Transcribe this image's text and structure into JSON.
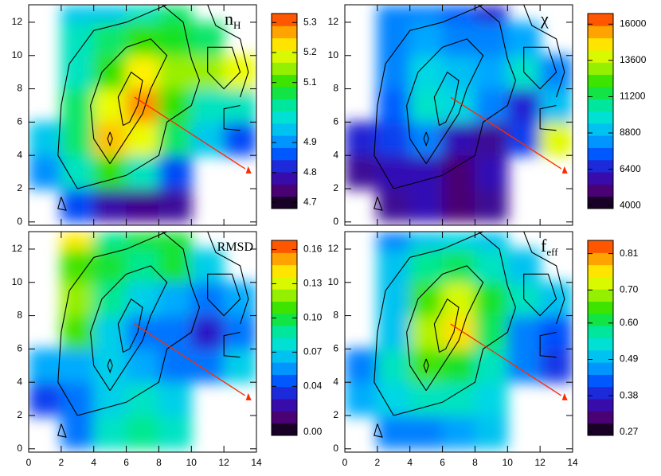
{
  "colormap": [
    "#000000",
    "#4a0070",
    "#3010c0",
    "#0050ff",
    "#00a8ff",
    "#00e0e0",
    "#00e890",
    "#20e000",
    "#a0f000",
    "#ffff00",
    "#ffa000",
    "#ff3000"
  ],
  "chart_data": [
    {
      "type": "heatmap",
      "title": "n",
      "title_sub": "H",
      "show_xtick_labels": false,
      "xlim": [
        0,
        14
      ],
      "ylim": [
        -0.2,
        13.05
      ],
      "xticks": [
        0,
        2,
        4,
        6,
        8,
        10,
        12,
        14
      ],
      "yticks": [
        0,
        2,
        4,
        6,
        8,
        10,
        12
      ],
      "xbins": [
        0,
        2,
        4,
        6,
        8,
        10,
        12,
        14
      ],
      "ybins": [
        0,
        2,
        4,
        6,
        8,
        10,
        12,
        13
      ],
      "values": [
        [
          null,
          4.85,
          4.78,
          4.76,
          4.77,
          null,
          null
        ],
        [
          4.9,
          5.0,
          5.1,
          5.0,
          4.85,
          null,
          null
        ],
        [
          4.95,
          5.05,
          5.25,
          5.2,
          5.05,
          4.95,
          4.85
        ],
        [
          null,
          5.05,
          5.2,
          5.28,
          5.1,
          5.0,
          5.0
        ],
        [
          null,
          5.0,
          5.1,
          5.22,
          5.15,
          5.15,
          5.2
        ],
        [
          null,
          5.0,
          5.05,
          5.1,
          5.08,
          5.05,
          null
        ],
        [
          null,
          4.95,
          4.95,
          5.0,
          5.05,
          null,
          null
        ]
      ],
      "clim": [
        4.68,
        5.33
      ],
      "cticks": [
        4.7,
        4.8,
        4.9,
        5.1,
        5.2,
        5.3
      ]
    },
    {
      "type": "heatmap",
      "title": "χ",
      "show_xtick_labels": false,
      "xlim": [
        0,
        14
      ],
      "ylim": [
        -0.2,
        13.05
      ],
      "xticks": [
        0,
        2,
        4,
        6,
        8,
        10,
        12,
        14
      ],
      "yticks": [
        0,
        2,
        4,
        6,
        8,
        10,
        12
      ],
      "xbins": [
        0,
        2,
        4,
        6,
        8,
        10,
        12,
        14
      ],
      "ybins": [
        0,
        2,
        4,
        6,
        8,
        10,
        12,
        13
      ],
      "values": [
        [
          null,
          5500,
          6000,
          5000,
          5500,
          null,
          null
        ],
        [
          5500,
          6000,
          6000,
          5000,
          6000,
          null,
          null
        ],
        [
          6500,
          7000,
          8000,
          6000,
          5500,
          7000,
          14000
        ],
        [
          null,
          7500,
          10000,
          9500,
          8000,
          6500,
          9000
        ],
        [
          null,
          8000,
          9500,
          9000,
          8500,
          10000,
          8000
        ],
        [
          null,
          8000,
          8500,
          8000,
          8000,
          8500,
          null
        ],
        [
          null,
          8000,
          8000,
          7500,
          6500,
          null,
          null
        ]
      ],
      "clim": [
        3800,
        16700
      ],
      "cticks": [
        4000,
        6400,
        8800,
        11200,
        13600,
        16000
      ]
    },
    {
      "type": "heatmap",
      "title": "RMSD",
      "show_xtick_labels": true,
      "xlim": [
        0,
        14
      ],
      "ylim": [
        -0.2,
        13.05
      ],
      "xticks": [
        0,
        2,
        4,
        6,
        8,
        10,
        12,
        14
      ],
      "yticks": [
        0,
        2,
        4,
        6,
        8,
        10,
        12
      ],
      "xbins": [
        0,
        2,
        4,
        6,
        8,
        10,
        12,
        14
      ],
      "ybins": [
        0,
        2,
        4,
        6,
        8,
        10,
        12,
        13
      ],
      "values": [
        [
          null,
          0.05,
          0.08,
          0.09,
          0.08,
          null,
          null
        ],
        [
          0.04,
          0.05,
          0.07,
          0.08,
          0.07,
          null,
          null
        ],
        [
          0.06,
          0.06,
          0.07,
          0.06,
          0.05,
          0.05,
          0.07
        ],
        [
          null,
          0.11,
          0.07,
          0.05,
          0.05,
          0.03,
          0.05
        ],
        [
          null,
          0.12,
          0.09,
          0.07,
          0.06,
          0.05,
          0.06
        ],
        [
          null,
          0.11,
          0.1,
          0.09,
          0.1,
          0.07,
          null
        ],
        [
          null,
          0.14,
          0.09,
          0.1,
          0.1,
          null,
          null
        ]
      ],
      "clim": [
        -0.003,
        0.168
      ],
      "cticks": [
        {
          "value": 0,
          "label": "0.00"
        },
        0.04,
        0.07,
        {
          "value": 0.1,
          "label": "0.10"
        },
        0.13,
        0.16
      ]
    },
    {
      "type": "heatmap",
      "title": "f",
      "title_sub": "eff",
      "show_xtick_labels": true,
      "xlim": [
        0,
        14
      ],
      "ylim": [
        -0.2,
        13.05
      ],
      "xticks": [
        0,
        2,
        4,
        6,
        8,
        10,
        12,
        14
      ],
      "yticks": [
        0,
        2,
        4,
        6,
        8,
        10,
        12
      ],
      "xbins": [
        0,
        2,
        4,
        6,
        8,
        10,
        12,
        14
      ],
      "ybins": [
        0,
        2,
        4,
        6,
        8,
        10,
        12,
        13
      ],
      "values": [
        [
          null,
          0.45,
          0.45,
          0.47,
          0.5,
          null,
          null
        ],
        [
          0.48,
          0.52,
          0.55,
          0.55,
          0.52,
          null,
          null
        ],
        [
          0.45,
          0.55,
          0.65,
          0.62,
          0.55,
          0.45,
          0.4
        ],
        [
          null,
          0.5,
          0.7,
          0.76,
          0.6,
          0.45,
          0.42
        ],
        [
          null,
          0.5,
          0.65,
          0.72,
          0.62,
          0.55,
          0.5
        ],
        [
          null,
          0.5,
          0.58,
          0.6,
          0.55,
          0.5,
          null
        ],
        [
          null,
          0.45,
          0.5,
          0.52,
          0.5,
          null,
          null
        ]
      ],
      "clim": [
        0.26,
        0.85
      ],
      "cticks": [
        0.27,
        0.38,
        0.49,
        {
          "value": 0.6,
          "label": "0.60"
        },
        {
          "value": 0.7,
          "label": "0.70"
        },
        0.81
      ]
    }
  ]
}
